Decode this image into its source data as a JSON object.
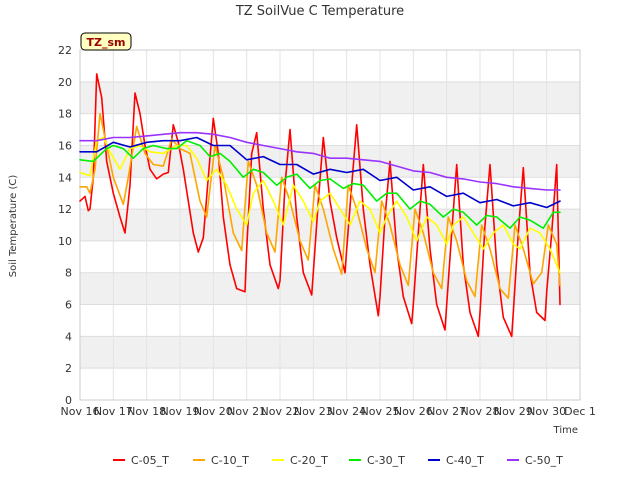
{
  "chart_data": {
    "type": "line",
    "title": "TZ SoilVue C Temperature",
    "xlabel": "Time",
    "ylabel": "Soil Temperature (C)",
    "badge": "TZ_sm",
    "ylim": [
      0,
      22
    ],
    "yticks": [
      0,
      2,
      4,
      6,
      8,
      10,
      12,
      14,
      16,
      18,
      20,
      22
    ],
    "xlim": [
      0,
      15
    ],
    "xticks": [
      "Nov 16",
      "Nov 17",
      "Nov 18",
      "Nov 19",
      "Nov 20",
      "Nov 21",
      "Nov 22",
      "Nov 23",
      "Nov 24",
      "Nov 25",
      "Nov 26",
      "Nov 27",
      "Nov 28",
      "Nov 29",
      "Nov 30",
      "Dec 1"
    ],
    "grid": true,
    "legend_position": "bottom",
    "series": [
      {
        "name": "C-05_T",
        "color": "#ff0000",
        "x": [
          0.0,
          0.15,
          0.25,
          0.3,
          0.4,
          0.5,
          0.65,
          0.8,
          1.0,
          1.2,
          1.35,
          1.5,
          1.65,
          1.8,
          1.95,
          2.0,
          2.1,
          2.3,
          2.5,
          2.65,
          2.8,
          2.95,
          3.0,
          3.1,
          3.25,
          3.4,
          3.55,
          3.7,
          3.85,
          4.0,
          4.15,
          4.3,
          4.5,
          4.7,
          4.95,
          5.0,
          5.15,
          5.3,
          5.5,
          5.7,
          5.95,
          6.0,
          6.15,
          6.3,
          6.5,
          6.7,
          6.95,
          7.0,
          7.15,
          7.3,
          7.5,
          7.7,
          7.95,
          8.0,
          8.15,
          8.3,
          8.5,
          8.7,
          8.95,
          9.0,
          9.15,
          9.3,
          9.5,
          9.7,
          9.95,
          10.0,
          10.15,
          10.3,
          10.5,
          10.7,
          10.95,
          11.0,
          11.15,
          11.3,
          11.5,
          11.7,
          11.95,
          12.0,
          12.15,
          12.3,
          12.5,
          12.7,
          12.95,
          13.0,
          13.15,
          13.3,
          13.5,
          13.7,
          13.95,
          14.0,
          14.15,
          14.3,
          14.4
        ],
        "y": [
          12.5,
          12.8,
          11.9,
          12.0,
          14.0,
          20.5,
          19.0,
          15.0,
          13.0,
          11.5,
          10.5,
          13.5,
          19.3,
          18.0,
          16.0,
          15.5,
          14.5,
          13.9,
          14.2,
          14.3,
          17.3,
          16.2,
          15.6,
          14.5,
          12.5,
          10.5,
          9.3,
          10.2,
          14.0,
          17.7,
          15.5,
          11.5,
          8.5,
          7.0,
          6.8,
          9.5,
          15.5,
          16.8,
          12.0,
          8.5,
          7.0,
          7.5,
          13.5,
          17.0,
          11.5,
          8.0,
          6.6,
          8.0,
          12.5,
          16.5,
          12.5,
          10.2,
          8.0,
          9.5,
          13.5,
          17.3,
          12.0,
          8.5,
          5.3,
          6.5,
          11.5,
          15.0,
          9.5,
          6.5,
          4.8,
          6.0,
          10.5,
          14.8,
          9.5,
          6.0,
          4.4,
          6.0,
          10.5,
          14.8,
          8.5,
          5.5,
          4.0,
          5.5,
          11.0,
          14.8,
          8.5,
          5.2,
          4.0,
          5.5,
          10.5,
          14.6,
          8.0,
          5.5,
          5.0,
          6.8,
          10.5,
          14.8,
          6.0
        ]
      },
      {
        "name": "C-10_T",
        "color": "#ffa500",
        "x": [
          0.0,
          0.2,
          0.3,
          0.45,
          0.6,
          0.75,
          1.0,
          1.3,
          1.45,
          1.7,
          1.95,
          2.2,
          2.5,
          2.75,
          3.0,
          3.3,
          3.6,
          3.8,
          4.05,
          4.3,
          4.6,
          4.85,
          5.05,
          5.3,
          5.6,
          5.85,
          6.05,
          6.3,
          6.6,
          6.85,
          7.05,
          7.3,
          7.6,
          7.85,
          8.05,
          8.3,
          8.6,
          8.85,
          9.05,
          9.3,
          9.6,
          9.85,
          10.05,
          10.3,
          10.6,
          10.85,
          11.05,
          11.3,
          11.6,
          11.85,
          12.05,
          12.3,
          12.6,
          12.85,
          13.05,
          13.3,
          13.6,
          13.85,
          14.05,
          14.3,
          14.4
        ],
        "y": [
          13.4,
          13.4,
          13.0,
          14.5,
          18.0,
          16.5,
          14.0,
          12.3,
          14.0,
          17.2,
          15.5,
          14.8,
          14.7,
          16.4,
          15.8,
          15.5,
          12.5,
          11.5,
          16.0,
          14.0,
          10.5,
          9.4,
          15.0,
          13.5,
          10.5,
          9.3,
          14.0,
          12.5,
          10.0,
          8.8,
          13.5,
          12.0,
          9.5,
          7.9,
          13.5,
          12.0,
          9.5,
          8.0,
          12.5,
          11.0,
          8.5,
          7.2,
          12.0,
          10.5,
          8.0,
          7.0,
          11.5,
          10.0,
          7.5,
          6.5,
          11.0,
          9.5,
          7.0,
          6.4,
          11.0,
          9.5,
          7.3,
          8.0,
          11.0,
          9.8,
          7.2
        ]
      },
      {
        "name": "C-20_T",
        "color": "#ffff00",
        "x": [
          0.0,
          0.3,
          0.5,
          0.7,
          0.9,
          1.2,
          1.5,
          1.8,
          2.1,
          2.5,
          2.9,
          3.2,
          3.5,
          3.8,
          4.1,
          4.4,
          4.7,
          5.0,
          5.2,
          5.5,
          5.8,
          6.1,
          6.4,
          6.7,
          7.0,
          7.2,
          7.5,
          7.8,
          8.1,
          8.4,
          8.7,
          9.0,
          9.2,
          9.5,
          9.8,
          10.1,
          10.4,
          10.7,
          11.0,
          11.2,
          11.5,
          11.8,
          12.1,
          12.4,
          12.7,
          13.0,
          13.2,
          13.5,
          13.8,
          14.1,
          14.4
        ],
        "y": [
          14.3,
          14.1,
          16.3,
          16.5,
          15.6,
          14.5,
          15.8,
          16.0,
          15.6,
          15.5,
          16.0,
          16.0,
          15.2,
          13.8,
          14.5,
          13.5,
          12.0,
          11.0,
          13.0,
          13.8,
          12.5,
          11.0,
          13.5,
          12.5,
          11.2,
          12.5,
          13.0,
          12.0,
          11.0,
          12.5,
          12.0,
          10.5,
          11.5,
          12.5,
          11.5,
          10.0,
          11.5,
          11.0,
          9.8,
          11.0,
          11.5,
          10.5,
          9.5,
          10.5,
          11.0,
          9.8,
          9.5,
          10.8,
          10.5,
          9.5,
          8.0
        ]
      },
      {
        "name": "C-30_T",
        "color": "#00ee00",
        "x": [
          0.0,
          0.4,
          0.8,
          1.0,
          1.3,
          1.6,
          1.9,
          2.2,
          2.6,
          2.9,
          3.2,
          3.6,
          3.9,
          4.2,
          4.5,
          4.9,
          5.2,
          5.5,
          5.9,
          6.2,
          6.5,
          6.9,
          7.2,
          7.5,
          7.9,
          8.2,
          8.5,
          8.9,
          9.2,
          9.5,
          9.9,
          10.2,
          10.5,
          10.9,
          11.2,
          11.5,
          11.9,
          12.2,
          12.5,
          12.9,
          13.2,
          13.5,
          13.9,
          14.2,
          14.4
        ],
        "y": [
          15.1,
          15.0,
          15.8,
          16.0,
          15.8,
          15.2,
          15.8,
          16.0,
          15.8,
          15.8,
          16.3,
          16.0,
          15.3,
          15.5,
          15.0,
          14.0,
          14.5,
          14.3,
          13.5,
          14.0,
          14.2,
          13.3,
          13.8,
          13.9,
          13.3,
          13.6,
          13.5,
          12.5,
          13.0,
          13.0,
          12.0,
          12.5,
          12.3,
          11.5,
          12.0,
          11.8,
          11.0,
          11.6,
          11.5,
          10.8,
          11.5,
          11.3,
          10.8,
          11.8,
          11.8
        ]
      },
      {
        "name": "C-40_T",
        "color": "#0000cc",
        "x": [
          0.0,
          0.5,
          1.0,
          1.5,
          2.0,
          2.5,
          3.0,
          3.5,
          4.0,
          4.5,
          5.0,
          5.5,
          6.0,
          6.5,
          7.0,
          7.5,
          8.0,
          8.5,
          9.0,
          9.5,
          10.0,
          10.5,
          11.0,
          11.5,
          12.0,
          12.5,
          13.0,
          13.5,
          14.0,
          14.4
        ],
        "y": [
          15.6,
          15.6,
          16.2,
          15.9,
          16.2,
          16.3,
          16.3,
          16.5,
          16.0,
          16.0,
          15.1,
          15.3,
          14.8,
          14.8,
          14.2,
          14.5,
          14.3,
          14.5,
          13.8,
          14.0,
          13.2,
          13.4,
          12.8,
          13.0,
          12.4,
          12.6,
          12.2,
          12.4,
          12.1,
          12.5
        ]
      },
      {
        "name": "C-50_T",
        "color": "#9933ff",
        "x": [
          0.0,
          0.5,
          1.0,
          1.5,
          2.0,
          2.5,
          3.0,
          3.5,
          4.0,
          4.5,
          5.0,
          5.5,
          6.0,
          6.5,
          7.0,
          7.5,
          8.0,
          8.5,
          9.0,
          9.5,
          10.0,
          10.5,
          11.0,
          11.5,
          12.0,
          12.5,
          13.0,
          13.5,
          14.0,
          14.4
        ],
        "y": [
          16.3,
          16.3,
          16.5,
          16.5,
          16.6,
          16.7,
          16.8,
          16.8,
          16.7,
          16.5,
          16.2,
          16.0,
          15.8,
          15.6,
          15.5,
          15.2,
          15.2,
          15.1,
          15.0,
          14.7,
          14.4,
          14.3,
          14.0,
          13.9,
          13.7,
          13.6,
          13.4,
          13.3,
          13.2,
          13.2
        ]
      }
    ]
  }
}
